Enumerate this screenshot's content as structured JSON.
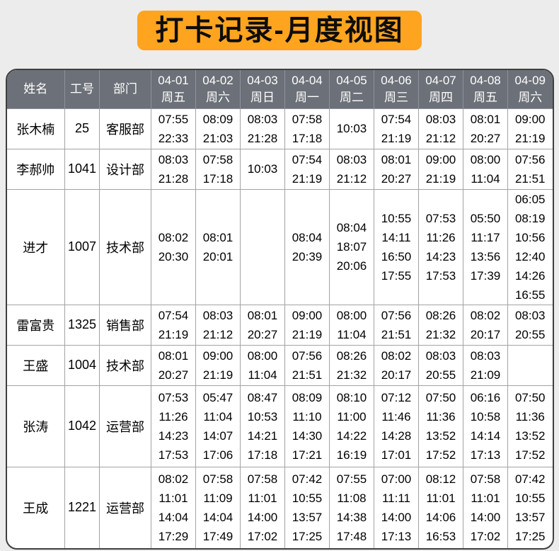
{
  "title": "打卡记录-月度视图",
  "colors": {
    "accent": "#FFA41F",
    "header_bg": "#6C7078",
    "page_bg": "#ECECEC",
    "grid": "#A3A3A3",
    "frame": "#3F3F3F"
  },
  "table": {
    "columns": [
      {
        "label": "姓名",
        "sub": null
      },
      {
        "label": "工号",
        "sub": null
      },
      {
        "label": "部门",
        "sub": null
      },
      {
        "label": "04-01",
        "sub": "周五"
      },
      {
        "label": "04-02",
        "sub": "周六"
      },
      {
        "label": "04-03",
        "sub": "周日"
      },
      {
        "label": "04-04",
        "sub": "周一"
      },
      {
        "label": "04-05",
        "sub": "周二"
      },
      {
        "label": "04-06",
        "sub": "周三"
      },
      {
        "label": "04-07",
        "sub": "周四"
      },
      {
        "label": "04-08",
        "sub": "周五"
      },
      {
        "label": "04-09",
        "sub": "周六"
      }
    ],
    "rows": [
      {
        "name": "张木楠",
        "employee_id": "25",
        "department": "客服部",
        "punches": [
          [
            "07:55",
            "22:33"
          ],
          [
            "08:09",
            "21:03"
          ],
          [
            "08:03",
            "21:28"
          ],
          [
            "07:58",
            "17:18"
          ],
          [
            "10:03"
          ],
          [
            "07:54",
            "21:19"
          ],
          [
            "08:03",
            "21:12"
          ],
          [
            "08:01",
            "20:27"
          ],
          [
            "09:00",
            "21:19"
          ]
        ]
      },
      {
        "name": "李郝帅",
        "employee_id": "1041",
        "department": "设计部",
        "punches": [
          [
            "08:03",
            "21:28"
          ],
          [
            "07:58",
            "17:18"
          ],
          [
            "10:03"
          ],
          [
            "07:54",
            "21:19"
          ],
          [
            "08:03",
            "21:12"
          ],
          [
            "08:01",
            "20:27"
          ],
          [
            "09:00",
            "21:19"
          ],
          [
            "08:00",
            "11:04"
          ],
          [
            "07:56",
            "21:51"
          ]
        ]
      },
      {
        "name": "进才",
        "employee_id": "1007",
        "department": "技术部",
        "punches": [
          [
            "08:02",
            "20:30"
          ],
          [
            "08:01",
            "20:01"
          ],
          [],
          [
            "08:04",
            "20:39"
          ],
          [
            "08:04",
            "18:07",
            "20:06"
          ],
          [
            "10:55",
            "14:11",
            "16:50",
            "17:55"
          ],
          [
            "07:53",
            "11:26",
            "14:23",
            "17:53"
          ],
          [
            "05:50",
            "11:17",
            "13:56",
            "17:39"
          ],
          [
            "06:05",
            "08:19",
            "10:56",
            "12:40",
            "14:26",
            "16:55"
          ]
        ]
      },
      {
        "name": "雷富贵",
        "employee_id": "1325",
        "department": "销售部",
        "punches": [
          [
            "07:54",
            "21:19"
          ],
          [
            "08:03",
            "21:12"
          ],
          [
            "08:01",
            "20:27"
          ],
          [
            "09:00",
            "21:19"
          ],
          [
            "08:00",
            "11:04"
          ],
          [
            "07:56",
            "21:51"
          ],
          [
            "08:26",
            "21:32"
          ],
          [
            "08:02",
            "20:17"
          ],
          [
            "08:03",
            "20:55"
          ]
        ]
      },
      {
        "name": "王盛",
        "employee_id": "1004",
        "department": "技术部",
        "punches": [
          [
            "08:01",
            "20:27"
          ],
          [
            "09:00",
            "21:19"
          ],
          [
            "08:00",
            "11:04"
          ],
          [
            "07:56",
            "21:51"
          ],
          [
            "08:26",
            "21:32"
          ],
          [
            "08:02",
            "20:17"
          ],
          [
            "08:03",
            "20:55"
          ],
          [
            "08:03",
            "21:09"
          ],
          []
        ]
      },
      {
        "name": "张涛",
        "employee_id": "1042",
        "department": "运营部",
        "punches": [
          [
            "07:53",
            "11:26",
            "14:23",
            "17:53"
          ],
          [
            "05:47",
            "11:04",
            "14:07",
            "17:06"
          ],
          [
            "08:47",
            "10:53",
            "14:21",
            "17:18"
          ],
          [
            "08:09",
            "11:10",
            "14:30",
            "17:21"
          ],
          [
            "08:10",
            "11:00",
            "14:22",
            "16:19"
          ],
          [
            "07:12",
            "11:46",
            "14:28",
            "17:01"
          ],
          [
            "07:50",
            "11:36",
            "13:52",
            "17:52"
          ],
          [
            "06:16",
            "10:58",
            "14:14",
            "17:13"
          ],
          [
            "07:50",
            "11:36",
            "13:52",
            "17:52"
          ]
        ]
      },
      {
        "name": "王成",
        "employee_id": "1221",
        "department": "运营部",
        "punches": [
          [
            "08:02",
            "11:01",
            "14:04",
            "17:29"
          ],
          [
            "07:58",
            "11:09",
            "14:04",
            "17:49"
          ],
          [
            "07:58",
            "11:01",
            "14:00",
            "17:02"
          ],
          [
            "07:42",
            "10:55",
            "13:57",
            "17:25"
          ],
          [
            "07:55",
            "11:08",
            "14:38",
            "17:48"
          ],
          [
            "07:00",
            "11:11",
            "14:00",
            "17:13"
          ],
          [
            "08:12",
            "11:01",
            "14:06",
            "16:53"
          ],
          [
            "07:58",
            "11:01",
            "14:00",
            "17:02"
          ],
          [
            "07:42",
            "10:55",
            "13:57",
            "17:25"
          ]
        ]
      }
    ]
  }
}
